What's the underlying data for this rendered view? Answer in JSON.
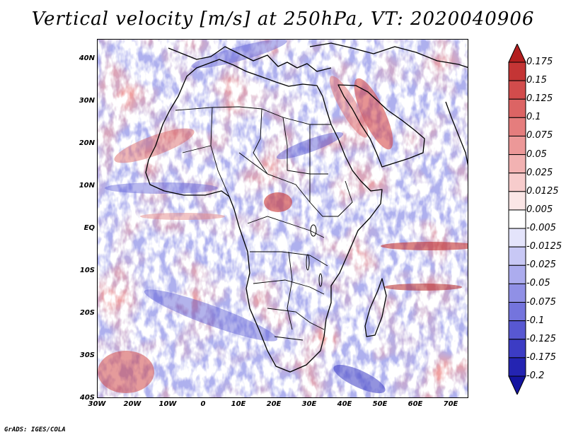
{
  "title": "Vertical velocity [m/s] at 250hPa, VT: 2020040906",
  "credit": "GrADS: IGES/COLA",
  "latitude_labels": [
    "40N",
    "30N",
    "20N",
    "10N",
    "EQ",
    "10S",
    "20S",
    "30S",
    "40S"
  ],
  "longitude_labels": [
    "30W",
    "20W",
    "10W",
    "0",
    "10E",
    "20E",
    "30E",
    "40E",
    "50E",
    "60E",
    "70E"
  ],
  "colorbar": {
    "levels": [
      "0.175",
      "0.15",
      "0.125",
      "0.1",
      "0.075",
      "0.05",
      "0.025",
      "0.0125",
      "0.005",
      "-0.005",
      "-0.0125",
      "-0.025",
      "-0.05",
      "-0.075",
      "-0.1",
      "-0.125",
      "-0.175",
      "-0.2"
    ],
    "colors": [
      "#b31f1f",
      "#c43535",
      "#d24c4c",
      "#dc6464",
      "#e57d7d",
      "#ec9898",
      "#f2b2b2",
      "#f7cccc",
      "#fbe6e6",
      "#ffffff",
      "#e4e4fb",
      "#c8c8f5",
      "#acacee",
      "#9090e6",
      "#7474dd",
      "#5858d2",
      "#3c3cc4",
      "#2424b2",
      "#1414a0"
    ]
  }
}
